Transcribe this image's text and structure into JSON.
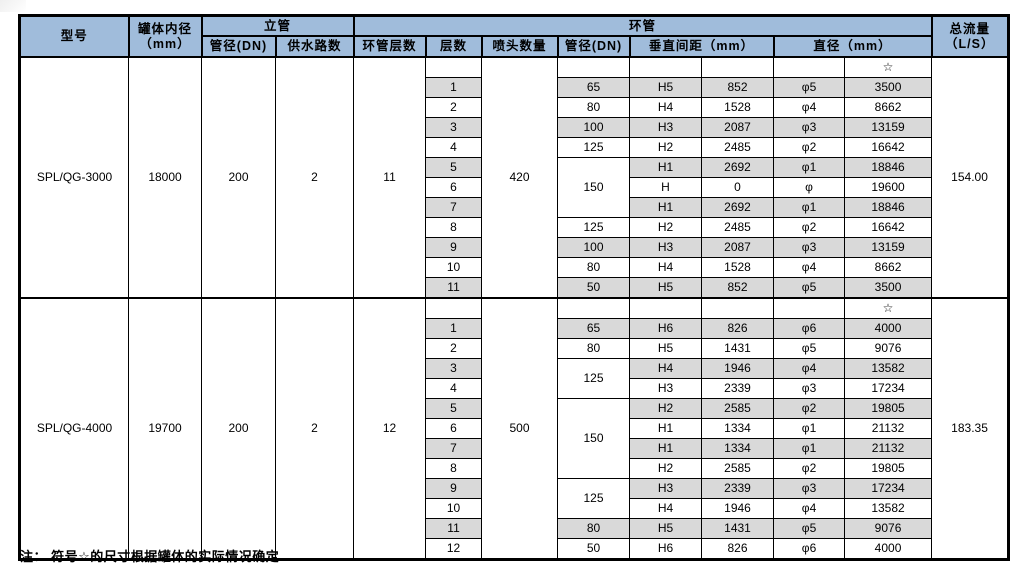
{
  "colors": {
    "header_bg": "#A0BCDB",
    "row_alt_bg": "#D9D9D9",
    "border": "#000000"
  },
  "header": {
    "model": "型号",
    "tank_diameter_l1": "罐体内径",
    "tank_diameter_l2": "（mm）",
    "riser_group": "立管",
    "riser_dn": "管径(DN)",
    "water_routes": "供水路数",
    "ring_group": "环管",
    "ring_layers": "环管层数",
    "layer_no": "层数",
    "nozzle_count": "喷头数量",
    "ring_dn": "管径(DN)",
    "vertical_spacing": "垂直间距（mm）",
    "diameter": "直径（mm）",
    "total_flow_l1": "总流量",
    "total_flow_l2": "（L/S）"
  },
  "blocks": [
    {
      "model": "SPL/QG-3000",
      "tank_diameter": "18000",
      "riser_dn": "200",
      "water_routes": "2",
      "ring_layers": "11",
      "nozzle_count": "420",
      "total_flow": "154.00",
      "star": "☆",
      "rows": [
        {
          "layer": "1",
          "dn": "65",
          "dn_span": 1,
          "h": "H5",
          "spacing": "852",
          "phi": "φ5",
          "dia": "3500",
          "shaded": true
        },
        {
          "layer": "2",
          "dn": "80",
          "dn_span": 1,
          "h": "H4",
          "spacing": "1528",
          "phi": "φ4",
          "dia": "8662",
          "shaded": false
        },
        {
          "layer": "3",
          "dn": "100",
          "dn_span": 1,
          "h": "H3",
          "spacing": "2087",
          "phi": "φ3",
          "dia": "13159",
          "shaded": true
        },
        {
          "layer": "4",
          "dn": "125",
          "dn_span": 1,
          "h": "H2",
          "spacing": "2485",
          "phi": "φ2",
          "dia": "16642",
          "shaded": false
        },
        {
          "layer": "5",
          "dn": "150",
          "dn_span": 3,
          "h": "H1",
          "spacing": "2692",
          "phi": "φ1",
          "dia": "18846",
          "shaded": true
        },
        {
          "layer": "6",
          "dn": null,
          "h": "H",
          "spacing": "0",
          "phi": "φ",
          "dia": "19600",
          "shaded": false
        },
        {
          "layer": "7",
          "dn": null,
          "h": "H1",
          "spacing": "2692",
          "phi": "φ1",
          "dia": "18846",
          "shaded": true
        },
        {
          "layer": "8",
          "dn": "125",
          "dn_span": 1,
          "h": "H2",
          "spacing": "2485",
          "phi": "φ2",
          "dia": "16642",
          "shaded": false
        },
        {
          "layer": "9",
          "dn": "100",
          "dn_span": 1,
          "h": "H3",
          "spacing": "2087",
          "phi": "φ3",
          "dia": "13159",
          "shaded": true
        },
        {
          "layer": "10",
          "dn": "80",
          "dn_span": 1,
          "h": "H4",
          "spacing": "1528",
          "phi": "φ4",
          "dia": "8662",
          "shaded": false
        },
        {
          "layer": "11",
          "dn": "50",
          "dn_span": 1,
          "h": "H5",
          "spacing": "852",
          "phi": "φ5",
          "dia": "3500",
          "shaded": true
        }
      ]
    },
    {
      "model": "SPL/QG-4000",
      "tank_diameter": "19700",
      "riser_dn": "200",
      "water_routes": "2",
      "ring_layers": "12",
      "nozzle_count": "500",
      "total_flow": "183.35",
      "star": "☆",
      "rows": [
        {
          "layer": "1",
          "dn": "65",
          "dn_span": 1,
          "h": "H6",
          "spacing": "826",
          "phi": "φ6",
          "dia": "4000",
          "shaded": true
        },
        {
          "layer": "2",
          "dn": "80",
          "dn_span": 1,
          "h": "H5",
          "spacing": "1431",
          "phi": "φ5",
          "dia": "9076",
          "shaded": false
        },
        {
          "layer": "3",
          "dn": "125",
          "dn_span": 2,
          "h": "H4",
          "spacing": "1946",
          "phi": "φ4",
          "dia": "13582",
          "shaded": true
        },
        {
          "layer": "4",
          "dn": null,
          "h": "H3",
          "spacing": "2339",
          "phi": "φ3",
          "dia": "17234",
          "shaded": false
        },
        {
          "layer": "5",
          "dn": "150",
          "dn_span": 4,
          "h": "H2",
          "spacing": "2585",
          "phi": "φ2",
          "dia": "19805",
          "shaded": true
        },
        {
          "layer": "6",
          "dn": null,
          "h": "H1",
          "spacing": "1334",
          "phi": "φ1",
          "dia": "21132",
          "shaded": false
        },
        {
          "layer": "7",
          "dn": null,
          "h": "H1",
          "spacing": "1334",
          "phi": "φ1",
          "dia": "21132",
          "shaded": true
        },
        {
          "layer": "8",
          "dn": null,
          "h": "H2",
          "spacing": "2585",
          "phi": "φ2",
          "dia": "19805",
          "shaded": false
        },
        {
          "layer": "9",
          "dn": "125",
          "dn_span": 2,
          "h": "H3",
          "spacing": "2339",
          "phi": "φ3",
          "dia": "17234",
          "shaded": true
        },
        {
          "layer": "10",
          "dn": null,
          "h": "H4",
          "spacing": "1946",
          "phi": "φ4",
          "dia": "13582",
          "shaded": false
        },
        {
          "layer": "11",
          "dn": "80",
          "dn_span": 1,
          "h": "H5",
          "spacing": "1431",
          "phi": "φ5",
          "dia": "9076",
          "shaded": true
        },
        {
          "layer": "12",
          "dn": "50",
          "dn_span": 1,
          "h": "H6",
          "spacing": "826",
          "phi": "φ6",
          "dia": "4000",
          "shaded": false
        }
      ]
    }
  ],
  "note": "注：  符号☆的尺寸根据罐体的实际情况确定"
}
